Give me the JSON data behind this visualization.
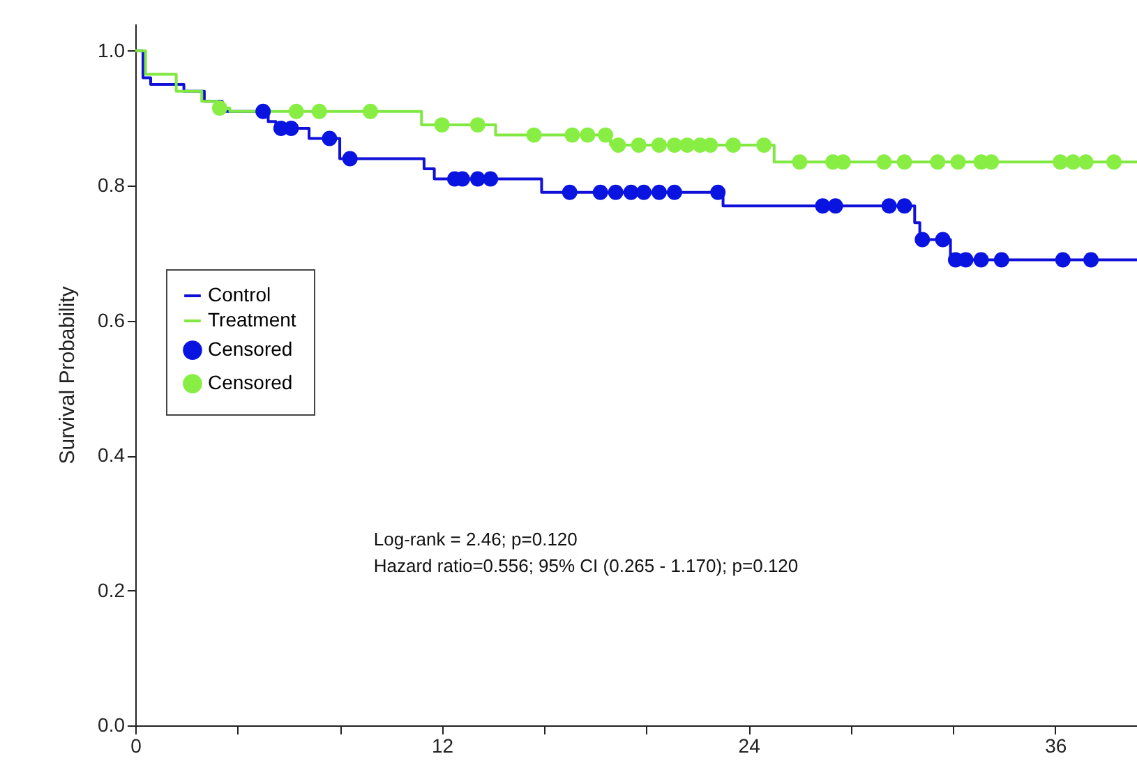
{
  "chart_data": {
    "type": "step",
    "ylabel": "Survival Probability",
    "xlim": [
      0,
      39.2
    ],
    "ylim": [
      0,
      1.04
    ],
    "xticks": [
      0,
      {
        "value": 4,
        "label": null
      },
      {
        "value": 8,
        "label": null
      },
      12,
      {
        "value": 16,
        "label": null
      },
      {
        "value": 20,
        "label": null
      },
      24,
      {
        "value": 28,
        "label": null
      },
      {
        "value": 32,
        "label": null
      },
      36
    ],
    "yticks": [
      {
        "value": 0,
        "label": "0.0"
      },
      {
        "value": 0.2,
        "label": "0.2"
      },
      {
        "value": 0.4,
        "label": "0.4"
      },
      {
        "value": 0.6,
        "label": "0.6"
      },
      {
        "value": 0.8,
        "label": "0.8"
      },
      {
        "value": 1,
        "label": "1.0"
      }
    ],
    "grid": false,
    "legend": "left",
    "annotations": [
      "Log-rank = 2.46; p=0.120",
      "Hazard ratio=0.556; 95% CI (0.265 - 1.170); p=0.120"
    ],
    "series": [
      {
        "name": "Control",
        "color": "#1010d8",
        "x": [
          0,
          0.3,
          0.6,
          1.9,
          2.7,
          3.4,
          5.2,
          5.5,
          6.8,
          8.0,
          11.3,
          11.7,
          15.9,
          23.0,
          30.5,
          30.7,
          31.9,
          39.2
        ],
        "values": [
          1.0,
          0.96,
          0.95,
          0.94,
          0.925,
          0.91,
          0.895,
          0.885,
          0.87,
          0.84,
          0.825,
          0.81,
          0.79,
          0.77,
          0.745,
          0.72,
          0.69,
          0.69
        ]
      },
      {
        "name": "Treatment",
        "color": "#80e840",
        "x": [
          0,
          0.4,
          1.6,
          2.6,
          3.2,
          3.7,
          11.2,
          14.1,
          18.6,
          25.0,
          39.2
        ],
        "values": [
          1.0,
          0.965,
          0.94,
          0.925,
          0.915,
          0.91,
          0.89,
          0.875,
          0.86,
          0.835,
          0.835
        ]
      },
      {
        "name": "Censored",
        "type": "scatter",
        "color": "#0a14e0",
        "x": [
          5.0,
          5.7,
          6.1,
          7.6,
          8.4,
          12.5,
          12.8,
          13.4,
          13.9,
          17.0,
          18.2,
          18.8,
          19.4,
          19.9,
          20.5,
          21.1,
          22.8,
          26.9,
          27.4,
          29.5,
          30.1,
          30.8,
          31.6,
          32.1,
          32.5,
          33.1,
          33.9,
          36.3,
          37.4
        ],
        "values": [
          0.91,
          0.885,
          0.885,
          0.87,
          0.84,
          0.81,
          0.81,
          0.81,
          0.81,
          0.79,
          0.79,
          0.79,
          0.79,
          0.79,
          0.79,
          0.79,
          0.79,
          0.77,
          0.77,
          0.77,
          0.77,
          0.72,
          0.72,
          0.69,
          0.69,
          0.69,
          0.69,
          0.69,
          0.69
        ]
      },
      {
        "name": "Censored",
        "type": "scatter",
        "color": "#88ee44",
        "x": [
          3.3,
          6.3,
          7.2,
          9.2,
          12.0,
          13.4,
          15.6,
          17.1,
          17.7,
          18.4,
          18.9,
          19.7,
          20.5,
          21.1,
          21.6,
          22.1,
          22.5,
          23.4,
          24.6,
          26.0,
          27.3,
          27.7,
          29.3,
          30.1,
          31.4,
          32.2,
          33.1,
          33.5,
          36.2,
          36.7,
          37.2,
          38.3
        ],
        "values": [
          0.915,
          0.91,
          0.91,
          0.91,
          0.89,
          0.89,
          0.875,
          0.875,
          0.875,
          0.875,
          0.86,
          0.86,
          0.86,
          0.86,
          0.86,
          0.86,
          0.86,
          0.86,
          0.86,
          0.835,
          0.835,
          0.835,
          0.835,
          0.835,
          0.835,
          0.835,
          0.835,
          0.835,
          0.835,
          0.835,
          0.835,
          0.835
        ]
      }
    ]
  }
}
